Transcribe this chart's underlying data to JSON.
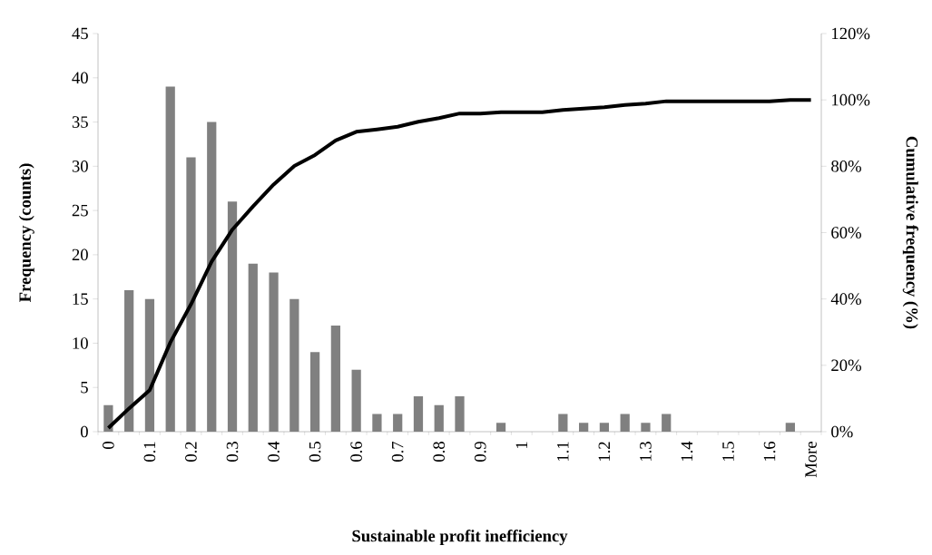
{
  "chart_data": {
    "type": "bar",
    "xlabel": "Sustainable profit inefficiency",
    "ylabel": "Frequency (counts)",
    "y2label": "Cumulative frequency (%)",
    "categories": [
      "0",
      null,
      "0.1",
      null,
      "0.2",
      null,
      "0.3",
      null,
      "0.4",
      null,
      "0.5",
      null,
      "0.6",
      null,
      "0.7",
      null,
      "0.8",
      null,
      "0.9",
      null,
      "1",
      null,
      "1.1",
      null,
      "1.2",
      null,
      "1.3",
      null,
      "1.4",
      null,
      "1.5",
      null,
      "1.6",
      null,
      "More"
    ],
    "ylim": [
      0,
      45
    ],
    "yticks": [
      0,
      5,
      10,
      15,
      20,
      25,
      30,
      35,
      40,
      45
    ],
    "y2lim": [
      0,
      120
    ],
    "y2ticks": [
      {
        "value": 0,
        "label": "0%"
      },
      {
        "value": 20,
        "label": "20%"
      },
      {
        "value": 40,
        "label": "40%"
      },
      {
        "value": 60,
        "label": "60%"
      },
      {
        "value": 80,
        "label": "80%"
      },
      {
        "value": 100,
        "label": "100%"
      },
      {
        "value": 120,
        "label": "120%"
      }
    ],
    "marker": "none",
    "series": [
      {
        "color": "#808080",
        "values": [
          3,
          16,
          15,
          39,
          31,
          35,
          26,
          19,
          18,
          15,
          9,
          12,
          7,
          2,
          2,
          4,
          3,
          4,
          0,
          1,
          0,
          0,
          2,
          1,
          1,
          2,
          1,
          2,
          0,
          0,
          0,
          0,
          0,
          1,
          0
        ]
      },
      {
        "type": "line",
        "axis": "y2",
        "color": "#000000",
        "values": [
          1.1,
          7.0,
          12.5,
          26.9,
          38.4,
          51.3,
          60.9,
          67.9,
          74.5,
          80.1,
          83.4,
          87.8,
          90.4,
          91.1,
          91.9,
          93.4,
          94.5,
          95.9,
          95.9,
          96.3,
          96.3,
          96.3,
          97.0,
          97.4,
          97.8,
          98.5,
          98.9,
          99.6,
          99.6,
          99.6,
          99.6,
          99.6,
          99.6,
          100,
          100
        ]
      }
    ]
  }
}
